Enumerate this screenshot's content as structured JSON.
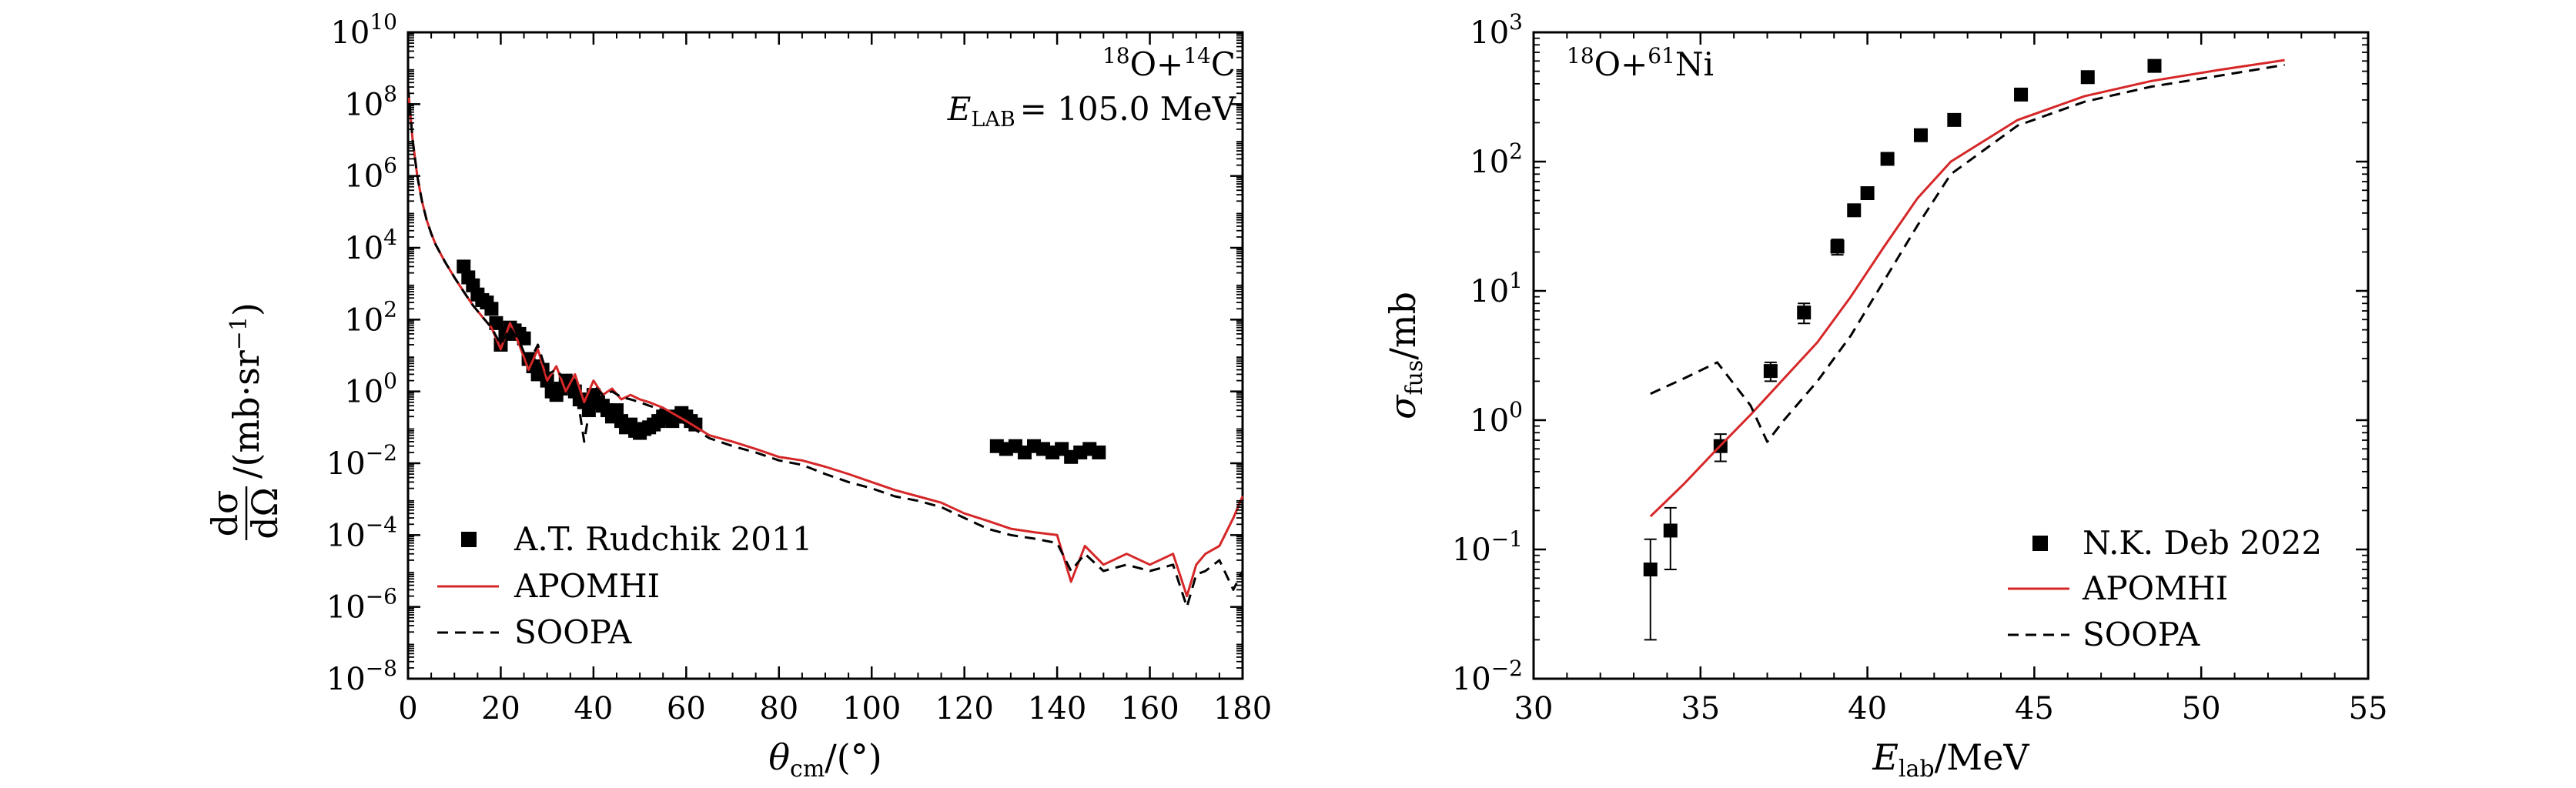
{
  "chart_data": [
    {
      "type": "scatter",
      "title": "",
      "annotation": {
        "reaction": {
          "a_mass": "18",
          "a_sym": "O",
          "plus": "+",
          "b_mass": "14",
          "b_sym": "C"
        },
        "energy": {
          "sym": "E",
          "sub": "LAB",
          "eq": "= 105.0 MeV"
        }
      },
      "xlabel": {
        "sym": "θ",
        "sub": "cm",
        "rest": "/(°)"
      },
      "ylabel": {
        "num": "dσ",
        "den": "dΩ",
        "rest": "/(mb·sr",
        "sup": "−1",
        "close": ")"
      },
      "xscale": "linear",
      "yscale": "log",
      "xlim": [
        0,
        180
      ],
      "ylim": [
        1e-08,
        10000000000.0
      ],
      "xticks": [
        "0",
        "20",
        "40",
        "60",
        "80",
        "100",
        "120",
        "140",
        "160",
        "180"
      ],
      "yticks": [
        {
          "base": "10",
          "exp": "−8"
        },
        {
          "base": "10",
          "exp": "−6"
        },
        {
          "base": "10",
          "exp": "−4"
        },
        {
          "base": "10",
          "exp": "−2"
        },
        {
          "base": "10",
          "exp": "0"
        },
        {
          "base": "10",
          "exp": "2"
        },
        {
          "base": "10",
          "exp": "4"
        },
        {
          "base": "10",
          "exp": "6"
        },
        {
          "base": "10",
          "exp": "8"
        },
        {
          "base": "10",
          "exp": "10"
        }
      ],
      "grid": false,
      "legend_position": "bottom-left",
      "series": [
        {
          "name": "A.T. Rudchik 2011",
          "style": "markers",
          "color": "#000000",
          "x": [
            12,
            13,
            14,
            15,
            16,
            17,
            18,
            19,
            20,
            21,
            22,
            23,
            24,
            25,
            26,
            27,
            28,
            29,
            30,
            31,
            32,
            33,
            34,
            35,
            36,
            37,
            38,
            39,
            40,
            41,
            42,
            43,
            44,
            45,
            46,
            47,
            48,
            49,
            50,
            51,
            52,
            53,
            54,
            55,
            56,
            57,
            58,
            59,
            60,
            61,
            62,
            127,
            129,
            131,
            133,
            135,
            137,
            139,
            141,
            143,
            145,
            147,
            149
          ],
          "y": [
            3000,
            1500,
            900,
            500,
            350,
            300,
            200,
            80,
            20,
            40,
            60,
            50,
            40,
            30,
            8,
            5,
            3,
            4,
            2,
            1,
            0.8,
            1.2,
            2,
            1.5,
            1.0,
            0.6,
            0.5,
            0.3,
            0.8,
            0.5,
            0.4,
            0.3,
            0.2,
            0.3,
            0.15,
            0.1,
            0.12,
            0.08,
            0.07,
            0.09,
            0.1,
            0.12,
            0.15,
            0.2,
            0.18,
            0.15,
            0.2,
            0.25,
            0.2,
            0.15,
            0.12,
            0.03,
            0.025,
            0.03,
            0.02,
            0.03,
            0.025,
            0.02,
            0.025,
            0.015,
            0.02,
            0.025,
            0.02
          ]
        },
        {
          "name": "APOMHI",
          "style": "line",
          "color": "#d62728",
          "x": [
            0,
            1,
            2,
            3,
            4,
            5,
            6,
            8,
            10,
            12,
            14,
            16,
            18,
            20,
            22,
            24,
            26,
            28,
            30,
            32,
            34,
            36,
            38,
            40,
            42,
            44,
            46,
            48,
            50,
            52,
            55,
            60,
            65,
            70,
            75,
            80,
            85,
            90,
            95,
            100,
            105,
            110,
            115,
            120,
            125,
            130,
            135,
            140,
            143,
            146,
            150,
            155,
            160,
            165,
            168,
            170,
            172,
            175,
            178,
            180
          ],
          "y": [
            300000000.0,
            10000000.0,
            1000000.0,
            200000.0,
            60000.0,
            25000.0,
            12000.0,
            4000,
            1500,
            600,
            250,
            120,
            60,
            15,
            80,
            20,
            4,
            15,
            2,
            5,
            1,
            3,
            0.5,
            2,
            0.8,
            1.2,
            0.6,
            0.8,
            0.6,
            0.5,
            0.35,
            0.15,
            0.06,
            0.04,
            0.025,
            0.015,
            0.012,
            0.008,
            0.005,
            0.003,
            0.0018,
            0.0012,
            0.0008,
            0.0004,
            0.00025,
            0.00015,
            0.00012,
            0.0001,
            5e-06,
            5e-05,
            1.5e-05,
            3e-05,
            1.5e-05,
            3e-05,
            2e-06,
            1.5e-05,
            3e-05,
            5e-05,
            0.0003,
            0.0012
          ]
        },
        {
          "name": "SOOPA",
          "style": "dashed",
          "color": "#000000",
          "x": [
            0,
            1,
            2,
            3,
            4,
            5,
            6,
            8,
            10,
            12,
            14,
            16,
            18,
            20,
            22,
            24,
            26,
            28,
            30,
            32,
            34,
            36,
            38,
            40,
            42,
            44,
            46,
            48,
            50,
            52,
            55,
            60,
            65,
            70,
            75,
            80,
            85,
            90,
            95,
            100,
            105,
            110,
            115,
            120,
            125,
            130,
            135,
            140,
            143,
            146,
            150,
            155,
            160,
            165,
            168,
            170,
            172,
            175,
            178,
            180
          ],
          "y": [
            300000000.0,
            10000000.0,
            1000000.0,
            200000.0,
            60000.0,
            25000.0,
            12000.0,
            4000,
            1500,
            600,
            250,
            120,
            60,
            20,
            60,
            25,
            6,
            20,
            3,
            4,
            2,
            2,
            0.04,
            1.5,
            0.8,
            1.0,
            0.7,
            0.6,
            0.5,
            0.4,
            0.3,
            0.12,
            0.05,
            0.03,
            0.02,
            0.012,
            0.009,
            0.005,
            0.003,
            0.002,
            0.0012,
            0.0009,
            0.0006,
            0.0003,
            0.00015,
            0.0001,
            8e-05,
            6e-05,
            1e-05,
            3e-05,
            1e-05,
            1.5e-05,
            1e-05,
            1.5e-05,
            1e-06,
            8e-06,
            1e-05,
            2e-05,
            3e-06,
            1e-05
          ]
        }
      ]
    },
    {
      "type": "scatter",
      "title": "",
      "annotation": {
        "reaction": {
          "a_mass": "18",
          "a_sym": "O",
          "plus": "+",
          "b_mass": "61",
          "b_sym": "Ni"
        }
      },
      "xlabel": {
        "sym": "E",
        "sub": "lab",
        "rest": "/MeV"
      },
      "ylabel": {
        "sym": "σ",
        "sub": "fus",
        "rest": "/mb"
      },
      "xscale": "linear",
      "yscale": "log",
      "xlim": [
        30,
        55
      ],
      "ylim": [
        0.01,
        1000
      ],
      "xticks": [
        "30",
        "35",
        "40",
        "45",
        "50",
        "55"
      ],
      "yticks": [
        "10−2",
        "10−1",
        "100",
        "101",
        "102",
        "103"
      ],
      "yticks_parts": [
        {
          "base": "10",
          "exp": "−2"
        },
        {
          "base": "10",
          "exp": "−1"
        },
        {
          "base": "10",
          "exp": "0"
        },
        {
          "base": "10",
          "exp": "1"
        },
        {
          "base": "10",
          "exp": "2"
        },
        {
          "base": "10",
          "exp": "3"
        }
      ],
      "grid": false,
      "legend_position": "bottom-right",
      "series": [
        {
          "name": "N.K. Deb 2022",
          "style": "markers",
          "color": "#000000",
          "x": [
            33.5,
            34.1,
            35.6,
            37.1,
            38.1,
            39.1,
            39.6,
            40.0,
            40.6,
            41.6,
            42.6,
            44.6,
            46.6,
            48.6
          ],
          "y": [
            0.07,
            0.14,
            0.63,
            2.4,
            6.8,
            22,
            42,
            57,
            105,
            160,
            210,
            330,
            450,
            550
          ],
          "err_low": [
            0.05,
            0.07,
            0.15,
            0.4,
            1.2,
            3,
            4,
            5,
            8,
            10,
            15,
            20,
            25,
            30
          ],
          "err_high": [
            0.05,
            0.07,
            0.15,
            0.4,
            1.2,
            3,
            4,
            5,
            8,
            10,
            15,
            20,
            25,
            30
          ]
        },
        {
          "name": "APOMHI",
          "style": "line",
          "color": "#d62728",
          "x": [
            33.5,
            34.5,
            35.5,
            36.5,
            37.5,
            38.5,
            39.5,
            40.5,
            41.5,
            42.5,
            44.5,
            46.5,
            48.5,
            50.5,
            52.5
          ],
          "y": [
            0.18,
            0.32,
            0.6,
            1.1,
            2.1,
            4.0,
            9,
            22,
            52,
            100,
            210,
            320,
            420,
            510,
            610
          ]
        },
        {
          "name": "SOOPA",
          "style": "dashed",
          "color": "#000000",
          "x": [
            33.5,
            34.5,
            35.5,
            36.5,
            37.0,
            37.5,
            38.5,
            39.5,
            40.5,
            41.5,
            42.5,
            44.5,
            46.5,
            48.5,
            50.5,
            52.5
          ],
          "y": [
            1.6,
            2.1,
            2.8,
            1.3,
            0.68,
            1.0,
            2.0,
            4.5,
            12,
            32,
            80,
            190,
            290,
            380,
            460,
            560
          ]
        }
      ]
    }
  ]
}
